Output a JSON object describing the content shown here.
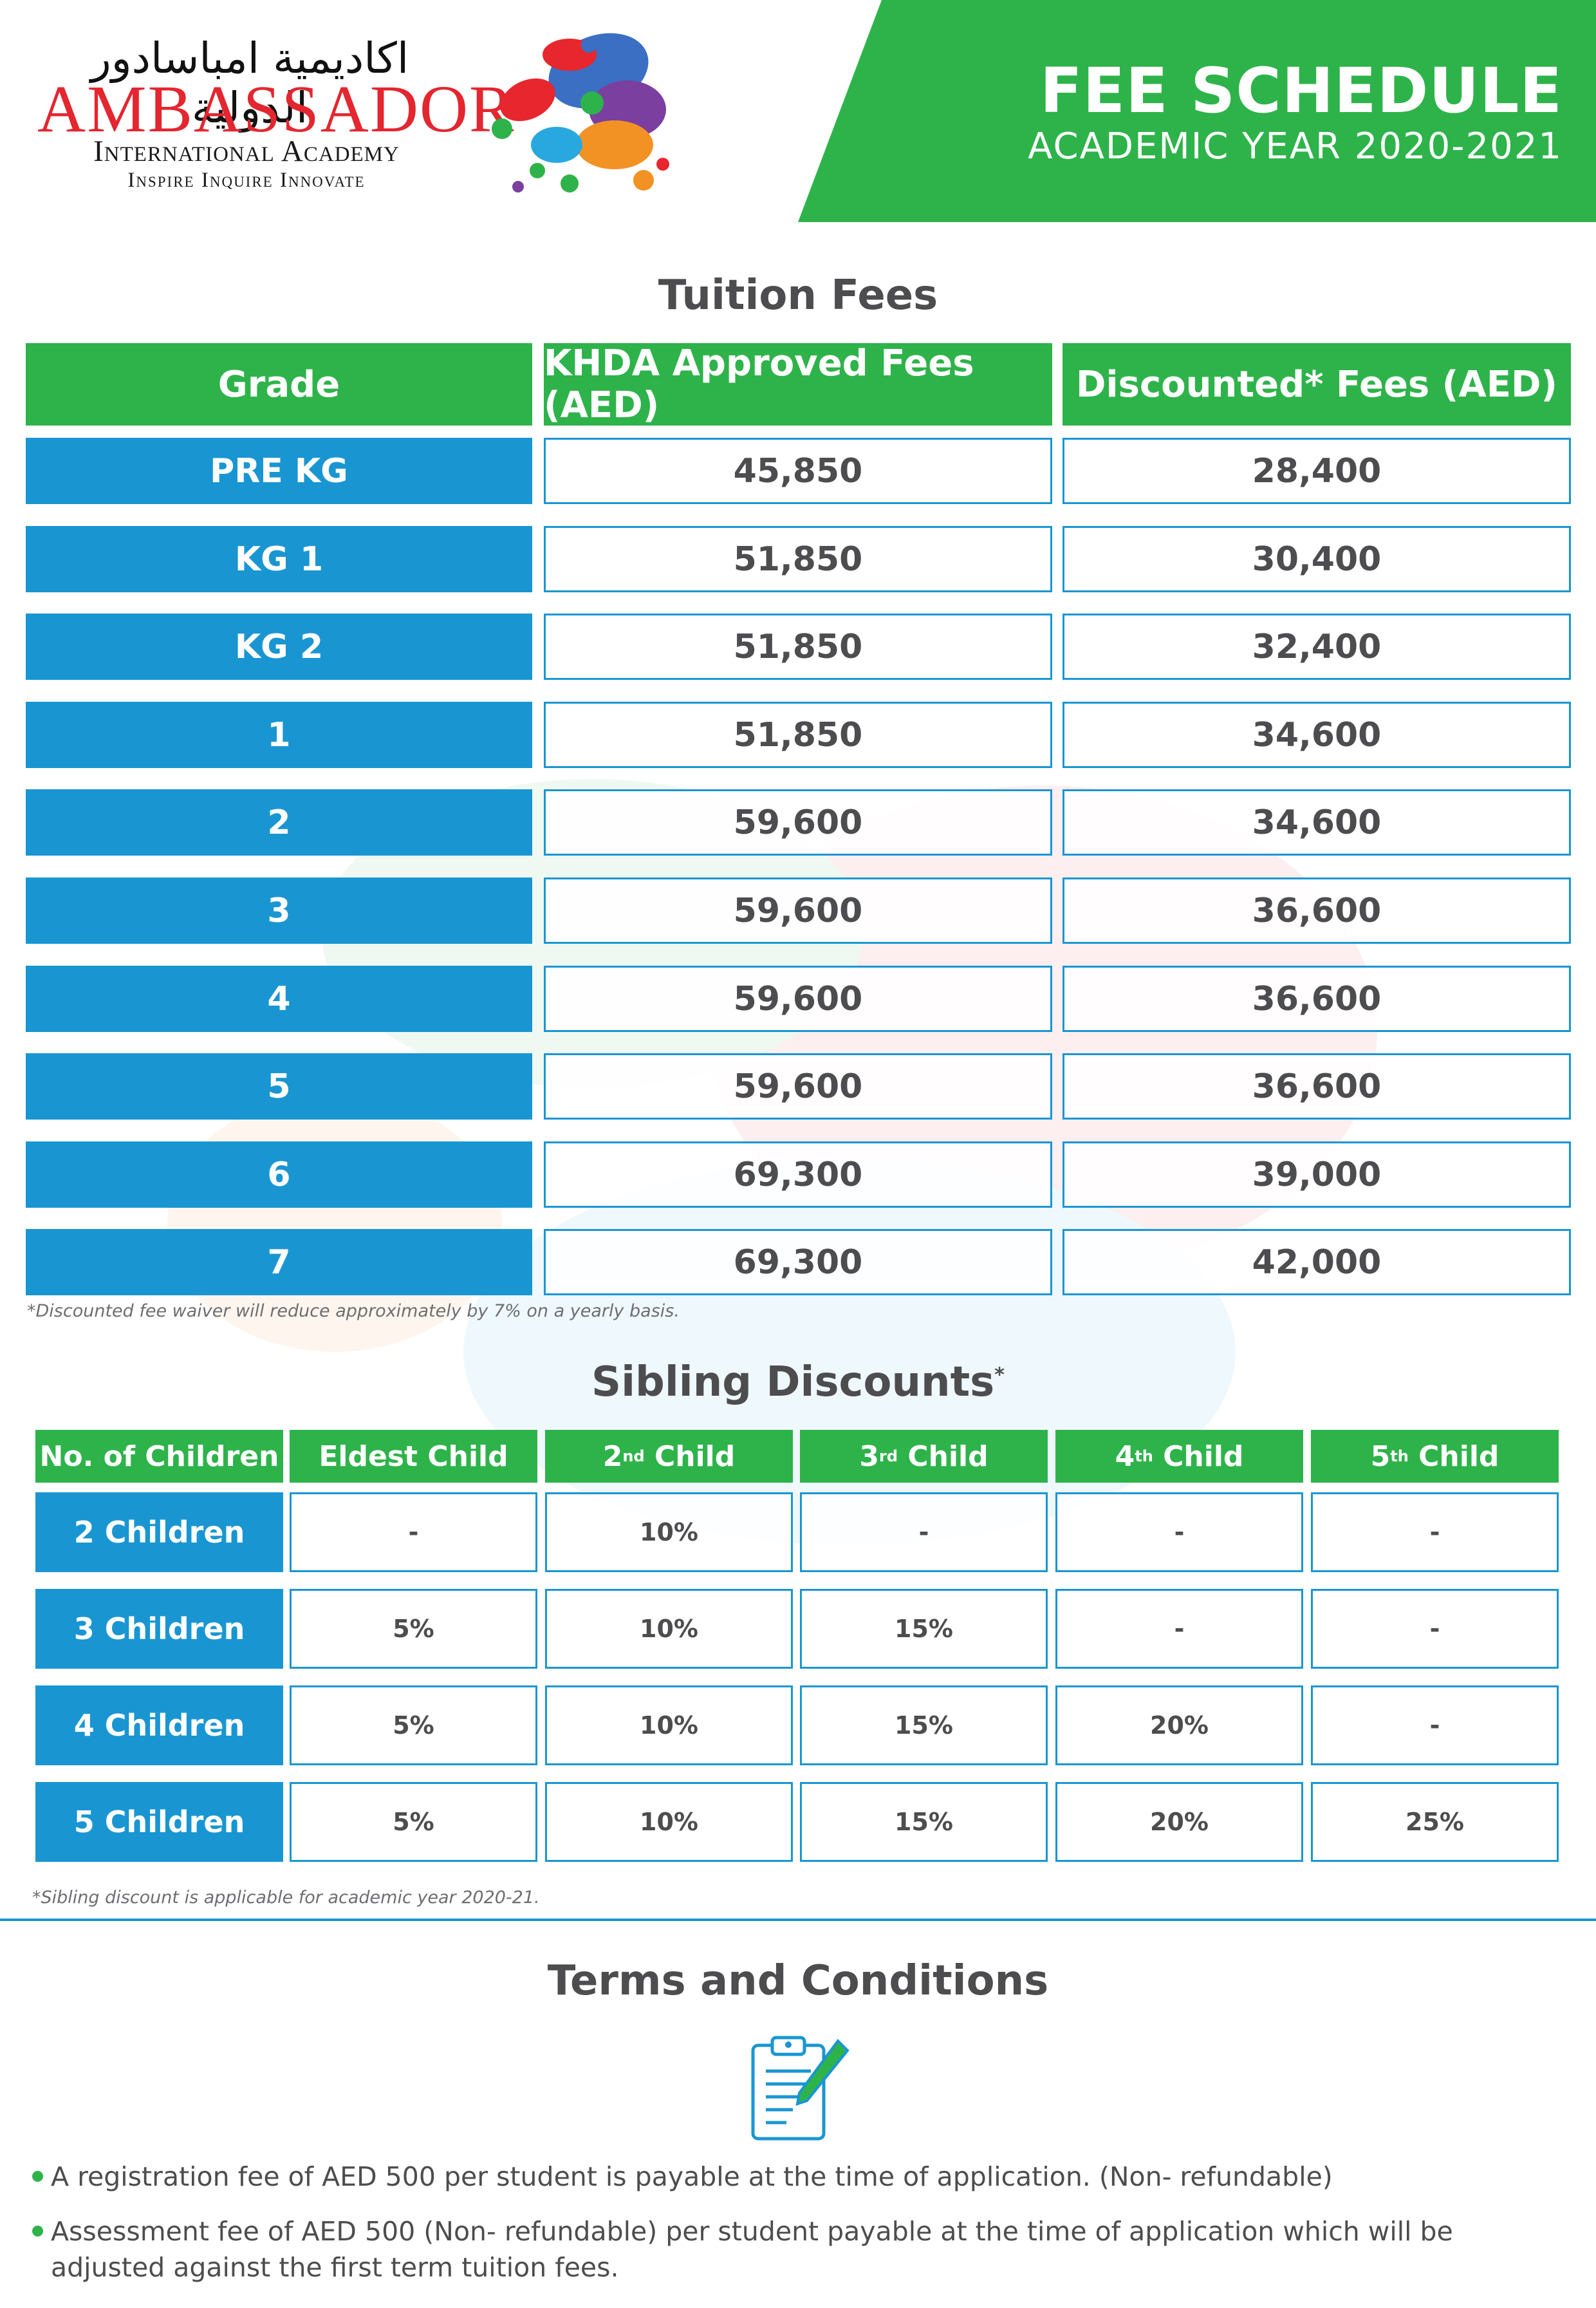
{
  "header": {
    "logo_arabic": "اكاديمية امباسادور الدولية",
    "logo_name": "AMBASSADOR",
    "logo_sub": "International Academy",
    "logo_tagline": "Inspire Inquire Innovate",
    "title": "FEE SCHEDULE",
    "subtitle": "ACADEMIC YEAR 2020-2021"
  },
  "colors": {
    "green": "#2eb34a",
    "blue": "#1996d2",
    "text": "#4d4d4f"
  },
  "tuition": {
    "title": "Tuition Fees",
    "headers": [
      "Grade",
      "KHDA Approved Fees (AED)",
      "Discounted* Fees (AED)"
    ],
    "rows": [
      {
        "grade": "PRE KG",
        "khda": "45,850",
        "discounted": "28,400"
      },
      {
        "grade": "KG 1",
        "khda": "51,850",
        "discounted": "30,400"
      },
      {
        "grade": "KG 2",
        "khda": "51,850",
        "discounted": "32,400"
      },
      {
        "grade": "1",
        "khda": "51,850",
        "discounted": "34,600"
      },
      {
        "grade": "2",
        "khda": "59,600",
        "discounted": "34,600"
      },
      {
        "grade": "3",
        "khda": "59,600",
        "discounted": "36,600"
      },
      {
        "grade": "4",
        "khda": "59,600",
        "discounted": "36,600"
      },
      {
        "grade": "5",
        "khda": "59,600",
        "discounted": "36,600"
      },
      {
        "grade": "6",
        "khda": "69,300",
        "discounted": "39,000"
      },
      {
        "grade": "7",
        "khda": "69,300",
        "discounted": "42,000"
      }
    ],
    "footnote": "*Discounted fee waiver will reduce approximately by 7% on a yearly basis."
  },
  "sibling": {
    "title": "Sibling Discounts",
    "title_mark": "*",
    "headers": [
      {
        "main": "No. of Children",
        "sup": "",
        "rest": ""
      },
      {
        "main": "Eldest Child",
        "sup": "",
        "rest": ""
      },
      {
        "main": "2",
        "sup": "nd",
        "rest": " Child"
      },
      {
        "main": "3",
        "sup": "rd",
        "rest": " Child"
      },
      {
        "main": "4",
        "sup": "th",
        "rest": " Child"
      },
      {
        "main": "5",
        "sup": "th",
        "rest": " Child"
      }
    ],
    "rows": [
      {
        "label": "2 Children",
        "values": [
          "-",
          "10%",
          "-",
          "-",
          "-"
        ]
      },
      {
        "label": "3 Children",
        "values": [
          "5%",
          "10%",
          "15%",
          "-",
          "-"
        ]
      },
      {
        "label": "4 Children",
        "values": [
          "5%",
          "10%",
          "15%",
          "20%",
          "-"
        ]
      },
      {
        "label": "5 Children",
        "values": [
          "5%",
          "10%",
          "15%",
          "20%",
          "25%"
        ]
      }
    ],
    "footnote": "*Sibling discount is applicable for academic year 2020-21."
  },
  "terms": {
    "title": "Terms and Conditions",
    "icon": "clipboard-pen-icon",
    "items": [
      "A registration fee of AED 500 per student is payable at the time of application. (Non- refundable)",
      "Assessment fee of AED 500 (Non- refundable) per student payable at the time of application which will be adjusted against the first term tuition fees."
    ]
  }
}
